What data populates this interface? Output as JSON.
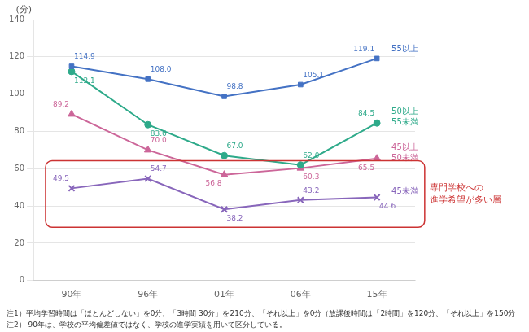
{
  "chart_data": {
    "type": "line",
    "ylabel": "(分)",
    "categories": [
      "90年",
      "96年",
      "01年",
      "06年",
      "15年"
    ],
    "series": [
      {
        "name": "55以上",
        "color": "#4472C4",
        "marker": "square",
        "values": [
          114.9,
          108.0,
          98.8,
          105.1,
          119.1
        ],
        "value_labels": [
          "114.9",
          "108.0",
          "98.8",
          "105.1",
          "119.1"
        ]
      },
      {
        "name": "50以上55未満",
        "color": "#2EAA8A",
        "marker": "circle",
        "values": [
          112.1,
          83.6,
          67.0,
          62.0,
          84.5
        ],
        "value_labels": [
          "112.1",
          "83.6",
          "67.0",
          "62.0",
          "84.5"
        ]
      },
      {
        "name": "45以上50未満",
        "color": "#CC6699",
        "marker": "triangle",
        "values": [
          89.2,
          70.0,
          56.8,
          60.3,
          65.5
        ],
        "value_labels": [
          "89.2",
          "70.0",
          "56.8",
          "60.3",
          "65.5"
        ]
      },
      {
        "name": "45未満",
        "color": "#8866BB",
        "marker": "x",
        "values": [
          49.5,
          54.7,
          38.2,
          43.2,
          44.6
        ],
        "value_labels": [
          "49.5",
          "54.7",
          "38.2",
          "43.2",
          "44.6"
        ]
      }
    ],
    "annotations": [
      {
        "text": "55以上",
        "series": "55以上"
      },
      {
        "text": "50以上\n55未満",
        "series": "50以上55未満"
      },
      {
        "text": "45以上\n50未満",
        "series": "45以上50未満"
      },
      {
        "text": "45未満",
        "series": "45未満"
      },
      {
        "text": "専門学校への\n進学希望が多い層",
        "series": "45未満",
        "color": "#CC3333"
      }
    ],
    "notes": [
      "注1）平均学習時間は「ほとんどしない」を0分、「3時間 30分」を210分、「それ以上」を0分（放課後時間は「2時間」を120分、「それ以上」を150分",
      "注2） 90年は、学校の平均偏差値ではなく、学校の進学実績を用いて区分している。"
    ],
    "ylim": [
      0,
      140
    ],
    "yticks": [
      0,
      20,
      40,
      60,
      80,
      100,
      120,
      140
    ],
    "grid": true,
    "data_labels": true
  }
}
